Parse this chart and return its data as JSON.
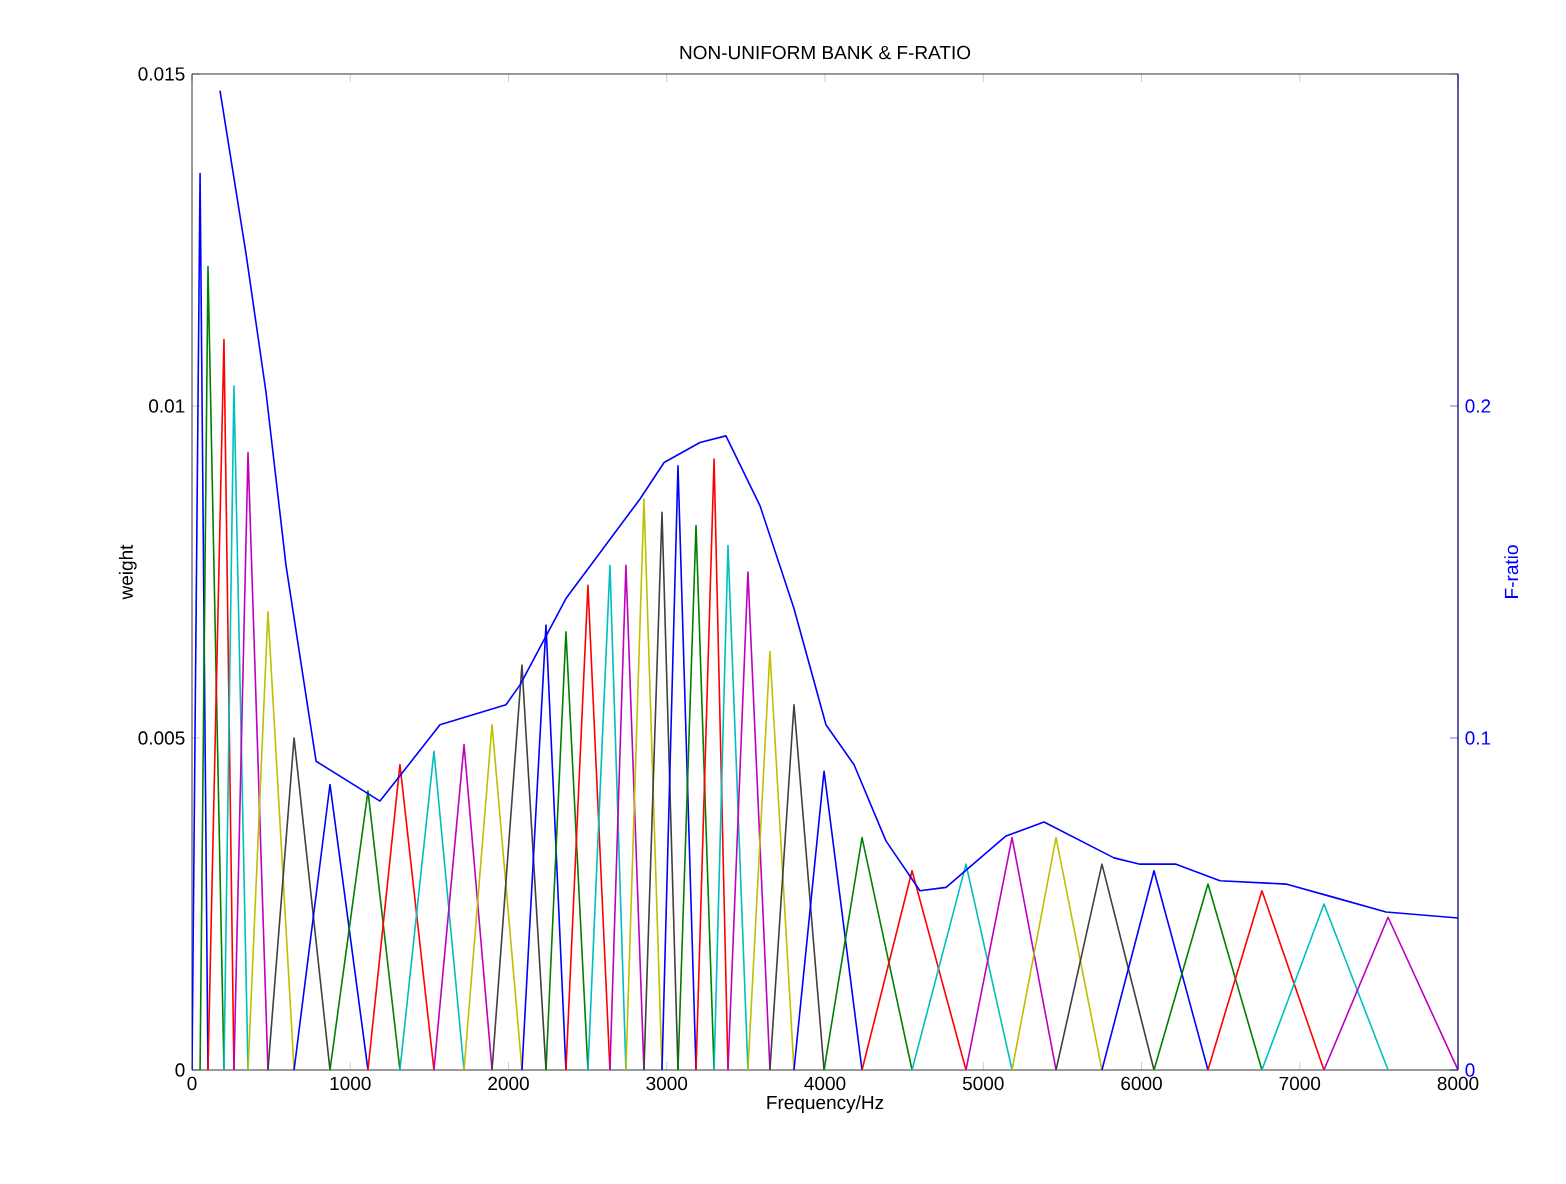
{
  "chart_data": {
    "type": "line",
    "title": "NON-UNIFORM BANK & F-RATIO",
    "xlabel": "Frequency/Hz",
    "ylabel": "weight",
    "y2label": "F-ratio",
    "xlim": [
      0,
      8000
    ],
    "xticks": [
      0,
      1000,
      2000,
      3000,
      4000,
      5000,
      6000,
      7000,
      8000
    ],
    "ylim": [
      0,
      0.015
    ],
    "yticks": [
      0,
      0.005,
      0.01,
      0.015
    ],
    "y2lim": [
      0,
      0.3
    ],
    "y2ticks": [
      0,
      0.1,
      0.2
    ],
    "series": [
      {
        "color": "#0000ff",
        "x": [
          0,
          51,
          101
        ],
        "values": [
          0,
          0.0135,
          0
        ]
      },
      {
        "color": "#008000",
        "x": [
          51,
          101,
          202
        ],
        "values": [
          0,
          0.0121,
          0
        ]
      },
      {
        "color": "#ff0000",
        "x": [
          101,
          202,
          265
        ],
        "values": [
          0,
          0.011,
          0
        ]
      },
      {
        "color": "#00bfbf",
        "x": [
          202,
          265,
          354
        ],
        "values": [
          0,
          0.0103,
          0
        ]
      },
      {
        "color": "#bf00bf",
        "x": [
          265,
          354,
          480
        ],
        "values": [
          0,
          0.0093,
          0
        ]
      },
      {
        "color": "#bfbf00",
        "x": [
          354,
          480,
          645
        ],
        "values": [
          0,
          0.0069,
          0
        ]
      },
      {
        "color": "#404040",
        "x": [
          480,
          645,
          872
        ],
        "values": [
          0,
          0.005,
          0
        ]
      },
      {
        "color": "#0000ff",
        "x": [
          645,
          872,
          1112
        ],
        "values": [
          0,
          0.0043,
          0
        ]
      },
      {
        "color": "#008000",
        "x": [
          872,
          1112,
          1314
        ],
        "values": [
          0,
          0.0042,
          0
        ]
      },
      {
        "color": "#ff0000",
        "x": [
          1112,
          1314,
          1529
        ],
        "values": [
          0,
          0.0046,
          0
        ]
      },
      {
        "color": "#00bfbf",
        "x": [
          1314,
          1529,
          1719
        ],
        "values": [
          0,
          0.0048,
          0
        ]
      },
      {
        "color": "#bf00bf",
        "x": [
          1529,
          1719,
          1896
        ],
        "values": [
          0,
          0.0049,
          0
        ]
      },
      {
        "color": "#bfbf00",
        "x": [
          1719,
          1896,
          2085
        ],
        "values": [
          0,
          0.0052,
          0
        ]
      },
      {
        "color": "#404040",
        "x": [
          1896,
          2085,
          2237
        ],
        "values": [
          0,
          0.0061,
          0
        ]
      },
      {
        "color": "#0000ff",
        "x": [
          2085,
          2237,
          2363
        ],
        "values": [
          0,
          0.0067,
          0
        ]
      },
      {
        "color": "#008000",
        "x": [
          2237,
          2363,
          2502
        ],
        "values": [
          0,
          0.0066,
          0
        ]
      },
      {
        "color": "#ff0000",
        "x": [
          2363,
          2502,
          2641
        ],
        "values": [
          0,
          0.0073,
          0
        ]
      },
      {
        "color": "#00bfbf",
        "x": [
          2502,
          2641,
          2742
        ],
        "values": [
          0,
          0.0076,
          0
        ]
      },
      {
        "color": "#bf00bf",
        "x": [
          2641,
          2742,
          2856
        ],
        "values": [
          0,
          0.0076,
          0
        ]
      },
      {
        "color": "#bfbf00",
        "x": [
          2742,
          2856,
          2970
        ],
        "values": [
          0,
          0.0086,
          0
        ]
      },
      {
        "color": "#404040",
        "x": [
          2856,
          2970,
          3071
        ],
        "values": [
          0,
          0.0084,
          0
        ]
      },
      {
        "color": "#0000ff",
        "x": [
          2970,
          3071,
          3185
        ],
        "values": [
          0,
          0.0091,
          0
        ]
      },
      {
        "color": "#008000",
        "x": [
          3071,
          3185,
          3299
        ],
        "values": [
          0,
          0.0082,
          0
        ]
      },
      {
        "color": "#ff0000",
        "x": [
          3185,
          3299,
          3387
        ],
        "values": [
          0,
          0.0092,
          0
        ]
      },
      {
        "color": "#00bfbf",
        "x": [
          3299,
          3387,
          3513
        ],
        "values": [
          0,
          0.0079,
          0
        ]
      },
      {
        "color": "#bf00bf",
        "x": [
          3387,
          3513,
          3652
        ],
        "values": [
          0,
          0.0075,
          0
        ]
      },
      {
        "color": "#bfbf00",
        "x": [
          3513,
          3652,
          3804
        ],
        "values": [
          0,
          0.0063,
          0
        ]
      },
      {
        "color": "#404040",
        "x": [
          3652,
          3804,
          3994
        ],
        "values": [
          0,
          0.0055,
          0
        ]
      },
      {
        "color": "#0000ff",
        "x": [
          3804,
          3994,
          4234
        ],
        "values": [
          0,
          0.0045,
          0
        ]
      },
      {
        "color": "#008000",
        "x": [
          3994,
          4234,
          4550
        ],
        "values": [
          0,
          0.0035,
          0
        ]
      },
      {
        "color": "#ff0000",
        "x": [
          4234,
          4550,
          4891
        ],
        "values": [
          0,
          0.003,
          0
        ]
      },
      {
        "color": "#00bfbf",
        "x": [
          4550,
          4891,
          5182
        ],
        "values": [
          0,
          0.0031,
          0
        ]
      },
      {
        "color": "#bf00bf",
        "x": [
          4891,
          5182,
          5460
        ],
        "values": [
          0,
          0.0035,
          0
        ]
      },
      {
        "color": "#bfbf00",
        "x": [
          5182,
          5460,
          5750
        ],
        "values": [
          0,
          0.0035,
          0
        ]
      },
      {
        "color": "#404040",
        "x": [
          5460,
          5750,
          6079
        ],
        "values": [
          0,
          0.0031,
          0
        ]
      },
      {
        "color": "#0000ff",
        "x": [
          5750,
          6079,
          6420
        ],
        "values": [
          0,
          0.003,
          0
        ]
      },
      {
        "color": "#008000",
        "x": [
          6079,
          6420,
          6761
        ],
        "values": [
          0,
          0.0028,
          0
        ]
      },
      {
        "color": "#ff0000",
        "x": [
          6420,
          6761,
          7153
        ],
        "values": [
          0,
          0.0027,
          0
        ]
      },
      {
        "color": "#00bfbf",
        "x": [
          6761,
          7153,
          7558
        ],
        "values": [
          0,
          0.0025,
          0
        ]
      },
      {
        "color": "#bf00bf",
        "x": [
          7153,
          7558,
          8000
        ],
        "values": [
          0,
          0.0023,
          0
        ]
      },
      {
        "axis": "y2",
        "color": "#0000ff",
        "x": [
          177,
          341,
          468,
          594,
          784,
          1188,
          1314,
          1567,
          1984,
          2073,
          2363,
          2831,
          2983,
          3210,
          3374,
          3589,
          3804,
          4006,
          4183,
          4385,
          4600,
          4765,
          5144,
          5384,
          5826,
          5991,
          6218,
          6496,
          6913,
          7216,
          7545,
          8000
        ],
        "values": [
          0.295,
          0.246,
          0.204,
          0.152,
          0.093,
          0.081,
          0.0886,
          0.104,
          0.11,
          0.116,
          0.142,
          0.172,
          0.183,
          0.189,
          0.191,
          0.17,
          0.139,
          0.104,
          0.092,
          0.069,
          0.054,
          0.055,
          0.0705,
          0.0747,
          0.0639,
          0.062,
          0.062,
          0.057,
          0.056,
          0.052,
          0.0476,
          0.0458
        ]
      }
    ]
  }
}
